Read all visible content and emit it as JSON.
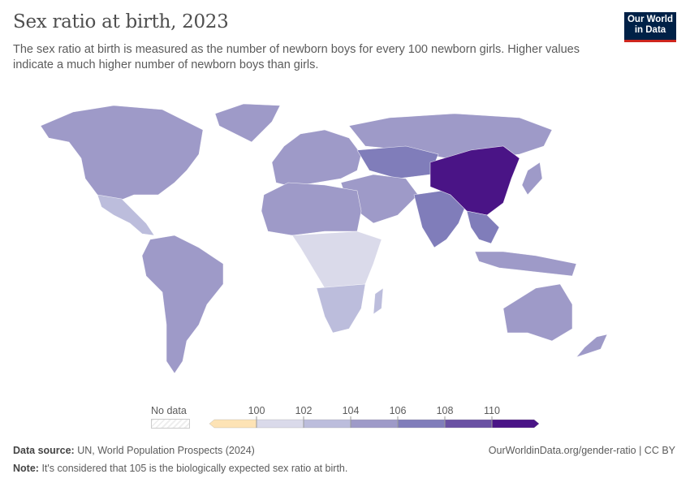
{
  "title": "Sex ratio at birth, 2023",
  "subtitle": "The sex ratio at birth is measured as the number of newborn boys for every 100 newborn girls. Higher values indicate a much higher number of newborn boys than girls.",
  "logo": {
    "line1": "Our World",
    "line2": "in Data"
  },
  "legend": {
    "no_data_label": "No data",
    "ticks": [
      "100",
      "102",
      "104",
      "106",
      "108",
      "110"
    ],
    "colors": [
      "#fde3b5",
      "#dadaea",
      "#bcbddc",
      "#9e9ac8",
      "#807dba",
      "#6a51a3",
      "#4a1486"
    ],
    "no_data_color": "#e8e8e8"
  },
  "regions": {
    "north_america": "#9e9ac8",
    "greenland": "#9e9ac8",
    "central_america": "#bcbddc",
    "south_america": "#9e9ac8",
    "europe": "#9e9ac8",
    "russia": "#9e9ac8",
    "central_asia": "#807dba",
    "middle_east": "#9e9ac8",
    "north_africa": "#9e9ac8",
    "sub_saharan_africa": "#dadaea",
    "southern_africa": "#bcbddc",
    "india": "#807dba",
    "china": "#4a1486",
    "southeast_asia": "#807dba",
    "indonesia": "#9e9ac8",
    "australia": "#9e9ac8",
    "japan": "#9e9ac8",
    "new_zealand": "#9e9ac8",
    "madagascar": "#bcbddc"
  },
  "footer": {
    "source_label": "Data source:",
    "source": "UN, World Population Prospects (2024)",
    "url": "OurWorldinData.org/gender-ratio | CC BY",
    "note_label": "Note:",
    "note": "It's considered that 105 is the biologically expected sex ratio at birth."
  }
}
